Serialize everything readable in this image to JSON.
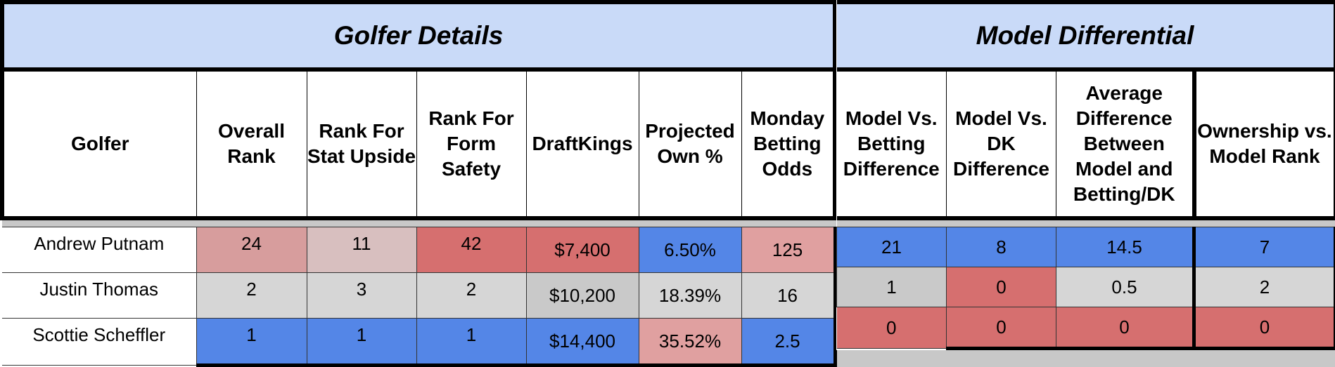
{
  "golfer_details": {
    "title": "Golfer Details",
    "headers": [
      "Golfer",
      "Overall Rank",
      "Rank For Stat Upside",
      "Rank For Form Safety",
      "DraftKings",
      "Projected Own %",
      "Monday Betting Odds"
    ],
    "rows": [
      {
        "golfer": "Andrew Putnam",
        "overall_rank": "24",
        "stat_upside": "11",
        "form_safety": "42",
        "draftkings": "$7,400",
        "projected_own": "6.50%",
        "betting_odds": "125"
      },
      {
        "golfer": "Justin Thomas",
        "overall_rank": "2",
        "stat_upside": "3",
        "form_safety": "2",
        "draftkings": "$10,200",
        "projected_own": "18.39%",
        "betting_odds": "16"
      },
      {
        "golfer": "Scottie Scheffler",
        "overall_rank": "1",
        "stat_upside": "1",
        "form_safety": "1",
        "draftkings": "$14,400",
        "projected_own": "35.52%",
        "betting_odds": "2.5"
      }
    ]
  },
  "model_differential": {
    "title": "Model Differential",
    "headers": [
      "Model Vs. Betting Difference",
      "Model Vs. DK Difference",
      "Average Difference Between Model and Betting/DK",
      "Ownership vs. Model Rank"
    ],
    "rows": [
      {
        "betting_diff": "21",
        "dk_diff": "8",
        "avg_diff": "14.5",
        "ownership_rank": "7"
      },
      {
        "betting_diff": "1",
        "dk_diff": "0",
        "avg_diff": "0.5",
        "ownership_rank": "2"
      },
      {
        "betting_diff": "0",
        "dk_diff": "0",
        "avg_diff": "0",
        "ownership_rank": "0"
      }
    ]
  },
  "colors": {
    "header_bg": "#c9daf8",
    "blue": "#5486e7",
    "red": "#d66f6f",
    "gray": "#d6d6d6"
  }
}
